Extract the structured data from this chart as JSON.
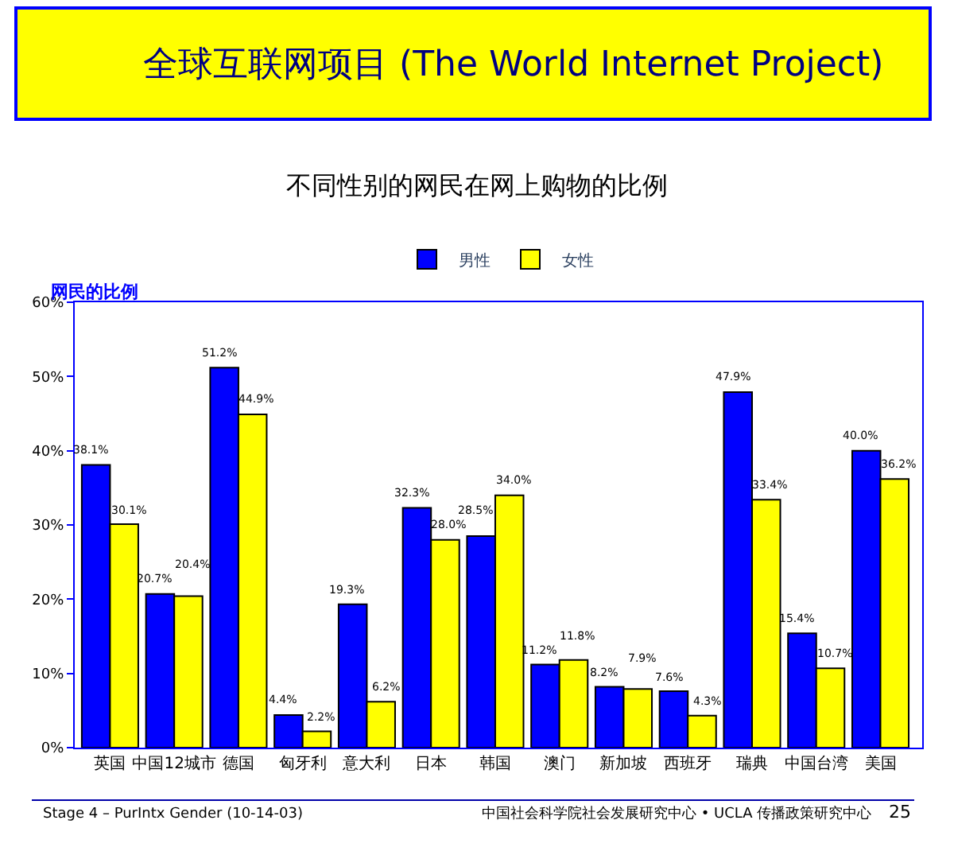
{
  "chart_data": {
    "type": "bar",
    "title": "全球互联网项目 (The World Internet Project)",
    "subtitle": "不同性别的网民在网上购物的比例",
    "ylabel": "网民的比例",
    "categories": [
      "英国",
      "中国12城市",
      "德国",
      "匈牙利",
      "意大利",
      "日本",
      "韩国",
      "澳门",
      "新加坡",
      "西班牙",
      "瑞典",
      "中国台湾",
      "美国"
    ],
    "series": [
      {
        "name": "男性",
        "color": "#0000ff",
        "values": [
          38.1,
          20.7,
          51.2,
          4.4,
          19.3,
          32.3,
          28.5,
          11.2,
          8.2,
          7.6,
          47.9,
          15.4,
          40.0
        ],
        "value_labels": [
          "38.1%",
          "20.7%",
          "51.2%",
          "4.4%",
          "19.3%",
          "32.3%",
          "28.5%",
          "11.2%",
          "8.2%",
          "7.6%",
          "47.9%",
          "15.4%",
          "40.0%"
        ]
      },
      {
        "name": "女性",
        "color": "#ffff00",
        "values": [
          30.1,
          20.4,
          44.9,
          2.2,
          6.2,
          28.0,
          34.0,
          11.8,
          7.9,
          4.3,
          33.4,
          10.7,
          36.2
        ],
        "value_labels": [
          "30.1%",
          "20.4%",
          "44.9%",
          "2.2%",
          "6.2%",
          "28.0%",
          "34.0%",
          "11.8%",
          "7.9%",
          "4.3%",
          "33.4%",
          "10.7%",
          "36.2%"
        ]
      }
    ],
    "ylim": [
      0,
      60
    ],
    "yticks": [
      {
        "value": 0,
        "label": "0%"
      },
      {
        "value": 10,
        "label": "10%"
      },
      {
        "value": 20,
        "label": "20%"
      },
      {
        "value": 30,
        "label": "30%"
      },
      {
        "value": 40,
        "label": "40%"
      },
      {
        "value": 50,
        "label": "50%"
      },
      {
        "value": 60,
        "label": "60%"
      }
    ],
    "legend": "top",
    "annotations": [
      "Stage 4 – PurIntx Gender (10-14-03)",
      "中国社会科学院社会发展研究中心 • UCLA 传播政策研究中心",
      "25"
    ]
  }
}
